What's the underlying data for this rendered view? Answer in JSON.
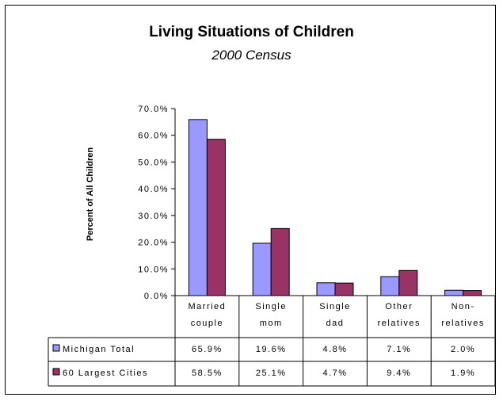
{
  "chart_data": {
    "type": "bar",
    "title": "Living Situations of Children",
    "subtitle": "2000 Census",
    "ylabel": "Percent of All Children",
    "ylim": [
      0,
      70
    ],
    "yticks": [
      "0.0%",
      "10.0%",
      "20.0%",
      "30.0%",
      "40.0%",
      "50.0%",
      "60.0%",
      "70.0%"
    ],
    "categories": [
      [
        "Married",
        "couple"
      ],
      [
        "Single",
        "mom"
      ],
      [
        "Single",
        "dad"
      ],
      [
        "Other",
        "relatives"
      ],
      [
        "Non-",
        "relatives"
      ]
    ],
    "series": [
      {
        "name": "Michigan Total",
        "values": [
          65.9,
          19.6,
          4.8,
          7.1,
          2.0
        ],
        "labels": [
          "65.9%",
          "19.6%",
          "4.8%",
          "7.1%",
          "2.0%"
        ],
        "color": "#9999ff"
      },
      {
        "name": "60 Largest Cities",
        "values": [
          58.5,
          25.1,
          4.7,
          9.4,
          1.9
        ],
        "labels": [
          "58.5%",
          "25.1%",
          "4.7%",
          "9.4%",
          "1.9%"
        ],
        "color": "#993366"
      }
    ],
    "grid": false,
    "legend": "data-table"
  }
}
